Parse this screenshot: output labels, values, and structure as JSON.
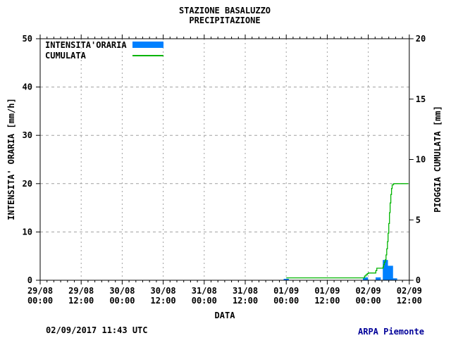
{
  "header": {
    "title_line1": "STAZIONE BASALUZZO",
    "title_line2": "PRECIPITAZIONE"
  },
  "legend": {
    "items": [
      {
        "label": "INTENSITA'ORARIA",
        "type": "bar",
        "color": "#0080ff"
      },
      {
        "label": "CUMULATA",
        "type": "line",
        "color": "#00b400"
      }
    ]
  },
  "footer": {
    "timestamp": "02/09/2017 11:43 UTC",
    "credit": "ARPA Piemonte",
    "credit_color": "#000099"
  },
  "chart_data": {
    "type": "combo",
    "title": "STAZIONE BASALUZZO",
    "subtitle": "PRECIPITAZIONE",
    "xlabel": "DATA",
    "x_unit": "hours since 29/08 00:00",
    "x_range": [
      0,
      108
    ],
    "x_major_tick_hours": 12,
    "x_minor_tick_hours": 2,
    "x_tick_labels": [
      [
        "29/08",
        "00:00"
      ],
      [
        "29/08",
        "12:00"
      ],
      [
        "30/08",
        "00:00"
      ],
      [
        "30/08",
        "12:00"
      ],
      [
        "31/08",
        "00:00"
      ],
      [
        "31/08",
        "12:00"
      ],
      [
        "01/09",
        "00:00"
      ],
      [
        "01/09",
        "12:00"
      ],
      [
        "02/09",
        "00:00"
      ],
      [
        "02/09",
        "12:00"
      ]
    ],
    "left_axis": {
      "label": "INTENSITA' ORARIA [mm/h]",
      "range": [
        0,
        50
      ],
      "ticks": [
        0,
        10,
        20,
        30,
        40,
        50
      ],
      "grid_values": [
        10,
        20,
        30,
        40
      ]
    },
    "right_axis": {
      "label": "PIOGGIA CUMULATA [mm]",
      "range": [
        0,
        20
      ],
      "ticks": [
        0,
        5,
        10,
        15,
        20
      ]
    },
    "grid_on": true,
    "grid_color": "#a0a0a0",
    "axis_color": "#000000",
    "legend_position": "top-left-inside",
    "series": [
      {
        "name": "INTENSITA'ORARIA",
        "type": "bar",
        "axis": "left",
        "unit": "mm/h",
        "color": "#0080ff",
        "bar_width_hours": 1.5,
        "points": [
          [
            72,
            0.3
          ],
          [
            95.2,
            0.6
          ],
          [
            98.9,
            0.6
          ],
          [
            101,
            4.2
          ],
          [
            102.5,
            3.0
          ],
          [
            103.7,
            0.4
          ]
        ]
      },
      {
        "name": "CUMULATA",
        "type": "step-line",
        "axis": "right",
        "unit": "mm",
        "color": "#00b400",
        "points": [
          [
            72,
            0.2
          ],
          [
            94.6,
            0.2
          ],
          [
            94.9,
            0.35
          ],
          [
            95.3,
            0.45
          ],
          [
            95.7,
            0.55
          ],
          [
            96,
            0.6
          ],
          [
            97.9,
            0.6
          ],
          [
            98.2,
            0.8
          ],
          [
            98.5,
            1.0
          ],
          [
            100,
            1.0
          ],
          [
            100.3,
            1.1
          ],
          [
            100.5,
            1.3
          ],
          [
            100.7,
            1.5
          ],
          [
            101,
            1.7
          ],
          [
            101.2,
            2.1
          ],
          [
            101.4,
            2.6
          ],
          [
            101.6,
            3.2
          ],
          [
            101.8,
            3.9
          ],
          [
            102,
            4.7
          ],
          [
            102.2,
            5.6
          ],
          [
            102.4,
            6.4
          ],
          [
            102.6,
            7.1
          ],
          [
            102.8,
            7.6
          ],
          [
            103,
            7.9
          ],
          [
            103.4,
            8.0
          ],
          [
            107.7,
            8.0
          ]
        ]
      }
    ]
  }
}
